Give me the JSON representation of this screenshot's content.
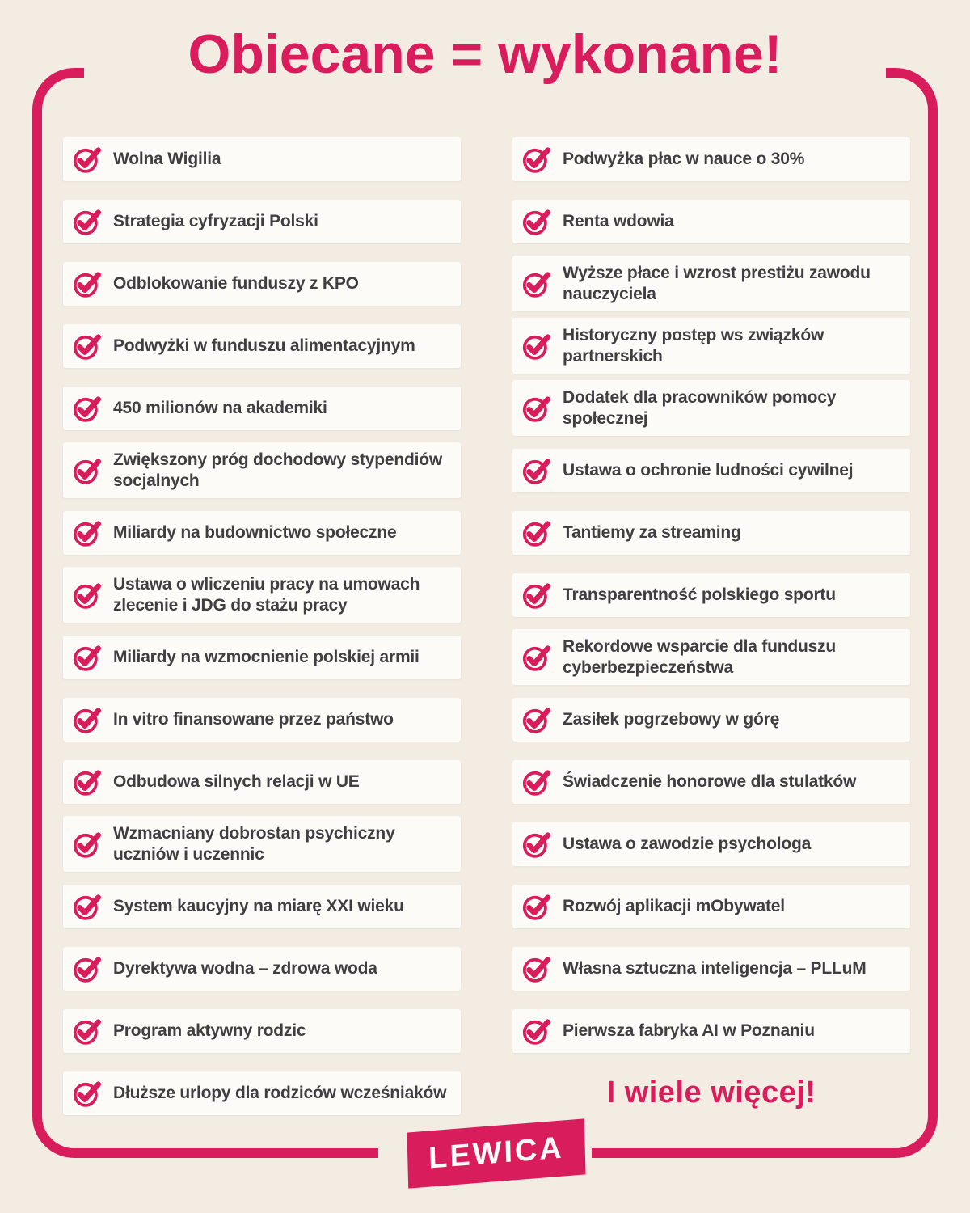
{
  "title": "Obiecane = wykonane!",
  "more_text": "I wiele więcej!",
  "logo": "LEWICA",
  "colors": {
    "accent_pink": "#d91c5c",
    "background_cream": "#f2ece2",
    "box_white": "#fdfbf8",
    "text_dark": "#3f3e41"
  },
  "icon": "check-circle-icon",
  "columns": {
    "left": [
      "Wolna Wigilia",
      "Strategia cyfryzacji Polski",
      "Odblokowanie funduszy z KPO",
      "Podwyżki w funduszu alimentacyjnym",
      "450 milionów na akademiki",
      "Zwiększony próg dochodowy stypendiów\nsocjalnych",
      "Miliardy na budownictwo społeczne",
      "Ustawa o wliczeniu pracy na umowach\nzlecenie i JDG do stażu pracy",
      "Miliardy na wzmocnienie polskiej armii",
      "In vitro finansowane przez państwo",
      "Odbudowa silnych relacji w UE",
      "Wzmacniany dobrostan psychiczny\nuczniów i uczennic",
      "System kaucyjny na miarę XXI wieku",
      "Dyrektywa wodna – zdrowa woda",
      "Program aktywny rodzic",
      "Dłuższe urlopy dla rodziców wcześniaków"
    ],
    "right": [
      "Podwyżka płac w nauce o 30%",
      "Renta wdowia",
      "Wyższe płace i wzrost prestiżu zawodu\nnauczyciela",
      "Historyczny postęp ws związków\npartnerskich",
      "Dodatek dla pracowników pomocy\nspołecznej",
      "Ustawa o ochronie ludności cywilnej",
      "Tantiemy za streaming",
      "Transparentność polskiego sportu",
      "Rekordowe wsparcie dla funduszu\ncyberbezpieczeństwa",
      "Zasiłek pogrzebowy w górę",
      "Świadczenie honorowe dla stulatków",
      "Ustawa o zawodzie psychologa",
      "Rozwój aplikacji mObywatel",
      "Własna sztuczna inteligencja – PLLuM",
      "Pierwsza fabryka AI w Poznaniu"
    ]
  }
}
